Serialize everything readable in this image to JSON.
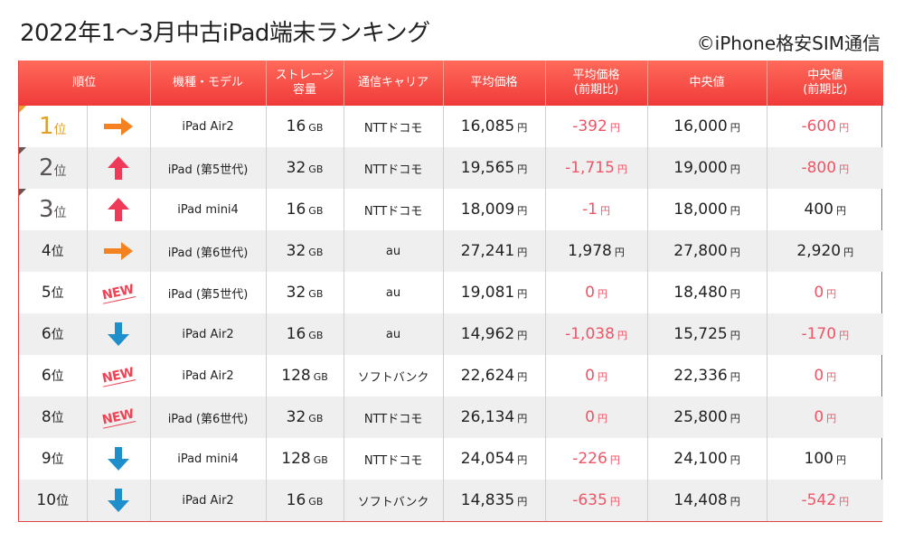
{
  "title": "2022年1～3月中古iPad端末ランキング",
  "credit": "©iPhone格安SIM通信",
  "colors": {
    "header": "#f03a3a",
    "negative": "#ee5566",
    "arrow_up": "#f03a5a",
    "arrow_right": "#f58220",
    "arrow_down": "#1f8fcc",
    "new": "#ee4455",
    "rank1": "#e0a02a"
  },
  "headers": {
    "rank": "順位",
    "model": "機種・モデル",
    "storage_line1": "ストレージ",
    "storage_line2": "容量",
    "carrier": "通信キャリア",
    "avg": "平均価格",
    "avg_change_line1": "平均価格",
    "avg_change_line2": "(前期比)",
    "median": "中央値",
    "median_change_line1": "中央値",
    "median_change_line2": "(前期比)"
  },
  "units": {
    "rank": "位",
    "storage": "GB",
    "yen": "円"
  },
  "rows": [
    {
      "rank": "1",
      "trend": "right-arrow",
      "model": "iPad Air2",
      "storage": "16",
      "carrier": "NTTドコモ",
      "avg": "16,085",
      "avg_change": "-392",
      "avg_change_neg": true,
      "median": "16,000",
      "median_change": "-600",
      "median_change_neg": true
    },
    {
      "rank": "2",
      "trend": "up-arrow",
      "model": "iPad (第5世代)",
      "storage": "32",
      "carrier": "NTTドコモ",
      "avg": "19,565",
      "avg_change": "-1,715",
      "avg_change_neg": true,
      "median": "19,000",
      "median_change": "-800",
      "median_change_neg": true
    },
    {
      "rank": "3",
      "trend": "up-arrow",
      "model": "iPad mini4",
      "storage": "16",
      "carrier": "NTTドコモ",
      "avg": "18,009",
      "avg_change": "-1",
      "avg_change_neg": true,
      "median": "18,000",
      "median_change": "400",
      "median_change_neg": false
    },
    {
      "rank": "4",
      "trend": "right-arrow",
      "model": "iPad (第6世代)",
      "storage": "32",
      "carrier": "au",
      "avg": "27,241",
      "avg_change": "1,978",
      "avg_change_neg": false,
      "median": "27,800",
      "median_change": "2,920",
      "median_change_neg": false
    },
    {
      "rank": "5",
      "trend": "new",
      "model": "iPad (第5世代)",
      "storage": "32",
      "carrier": "au",
      "avg": "19,081",
      "avg_change": "0",
      "avg_change_neg": true,
      "median": "18,480",
      "median_change": "0",
      "median_change_neg": true
    },
    {
      "rank": "6",
      "trend": "down-arrow",
      "model": "iPad Air2",
      "storage": "16",
      "carrier": "au",
      "avg": "14,962",
      "avg_change": "-1,038",
      "avg_change_neg": true,
      "median": "15,725",
      "median_change": "-170",
      "median_change_neg": true
    },
    {
      "rank": "6",
      "trend": "new",
      "model": "iPad Air2",
      "storage": "128",
      "carrier": "ソフトバンク",
      "avg": "22,624",
      "avg_change": "0",
      "avg_change_neg": true,
      "median": "22,336",
      "median_change": "0",
      "median_change_neg": true
    },
    {
      "rank": "8",
      "trend": "new",
      "model": "iPad (第6世代)",
      "storage": "32",
      "carrier": "NTTドコモ",
      "avg": "26,134",
      "avg_change": "0",
      "avg_change_neg": true,
      "median": "25,800",
      "median_change": "0",
      "median_change_neg": true
    },
    {
      "rank": "9",
      "trend": "down-arrow",
      "model": "iPad mini4",
      "storage": "128",
      "carrier": "NTTドコモ",
      "avg": "24,054",
      "avg_change": "-226",
      "avg_change_neg": true,
      "median": "24,100",
      "median_change": "100",
      "median_change_neg": false
    },
    {
      "rank": "10",
      "trend": "down-arrow",
      "model": "iPad Air2",
      "storage": "16",
      "carrier": "ソフトバンク",
      "avg": "14,835",
      "avg_change": "-635",
      "avg_change_neg": true,
      "median": "14,408",
      "median_change": "-542",
      "median_change_neg": true
    }
  ],
  "new_label": "NEW"
}
